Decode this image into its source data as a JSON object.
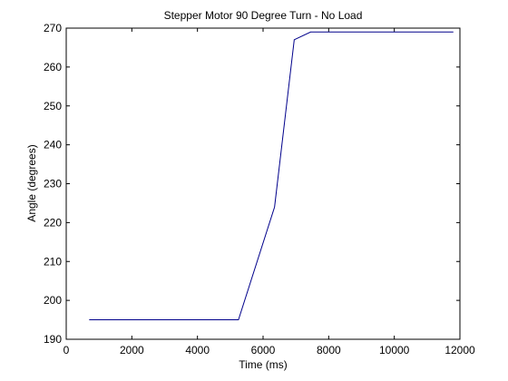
{
  "chart_data": {
    "type": "line",
    "title": "Stepper Motor 90 Degree Turn - No Load",
    "xlabel": "Time (ms)",
    "ylabel": "Angle (degrees)",
    "xlim": [
      0,
      12000
    ],
    "ylim": [
      190,
      270
    ],
    "xticks": [
      0,
      2000,
      4000,
      6000,
      8000,
      10000,
      12000
    ],
    "yticks": [
      190,
      200,
      210,
      220,
      230,
      240,
      250,
      260,
      270
    ],
    "grid": false,
    "series": [
      {
        "color": "#00008b",
        "x": [
          700,
          5250,
          6350,
          6950,
          7450,
          11800
        ],
        "y": [
          195,
          195,
          224,
          267,
          269,
          269
        ]
      }
    ]
  }
}
